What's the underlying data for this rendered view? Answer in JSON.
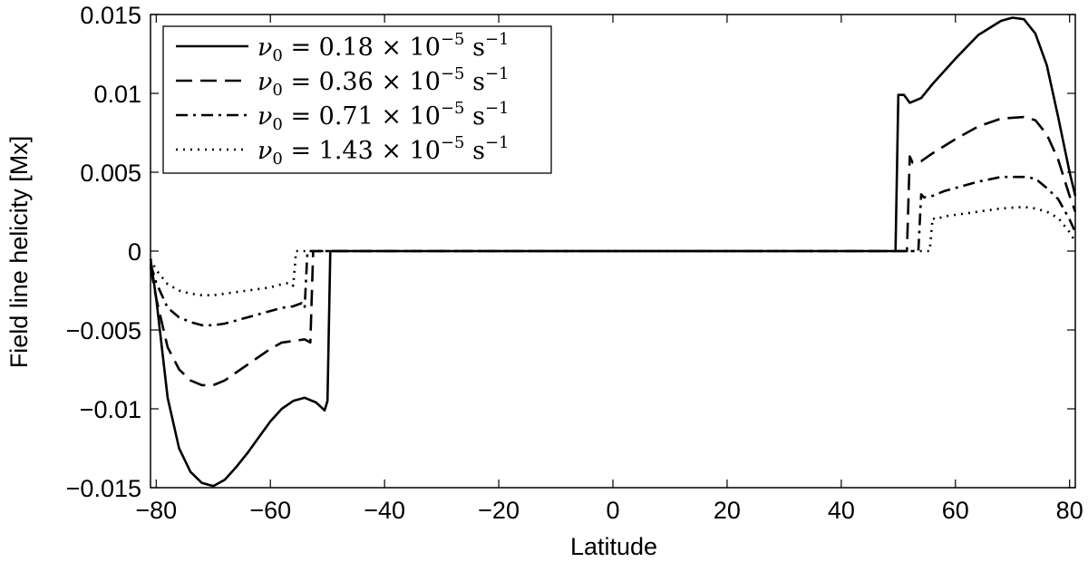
{
  "chart_data": {
    "type": "line",
    "title": "",
    "xlabel": "Latitude",
    "ylabel": "Field line helicity [Mx]",
    "xlim": [
      -81,
      81
    ],
    "ylim": [
      -0.015,
      0.015
    ],
    "x_ticks": [
      -80,
      -60,
      -40,
      -20,
      0,
      20,
      40,
      60,
      80
    ],
    "x_tick_labels": [
      "−80",
      "−60",
      "−40",
      "−20",
      "0",
      "20",
      "40",
      "60",
      "80"
    ],
    "y_ticks": [
      -0.015,
      -0.01,
      -0.005,
      0,
      0.005,
      0.01,
      0.015
    ],
    "y_tick_labels": [
      "−0.015",
      "−0.01",
      "−0.005",
      "0",
      "0.005",
      "0.01",
      "0.015"
    ],
    "grid": false,
    "legend_position": "top-left",
    "series": [
      {
        "name": "ν0 = 0.18 × 10−5 s−1",
        "label_parts": {
          "nu": "0.18",
          "exp": "−5",
          "unit_exp": "−1"
        },
        "style": "solid",
        "x": [
          -81,
          -80,
          -78,
          -76,
          -74,
          -72,
          -70,
          -68,
          -66,
          -64,
          -62,
          -60,
          -58,
          -56,
          -54,
          -52,
          -50.5,
          -50,
          -49.5,
          -49,
          -45,
          -30,
          -10,
          0,
          10,
          30,
          49,
          49.5,
          50,
          51,
          52,
          54,
          56,
          60,
          64,
          68,
          70,
          72,
          74,
          76,
          78,
          80,
          81
        ],
        "y": [
          -0.0005,
          -0.003,
          -0.0093,
          -0.0125,
          -0.014,
          -0.0147,
          -0.0149,
          -0.0145,
          -0.0137,
          -0.0128,
          -0.0118,
          -0.0108,
          -0.01,
          -0.0095,
          -0.0093,
          -0.0096,
          -0.0101,
          -0.0095,
          0,
          0,
          0,
          0,
          0,
          0,
          0,
          0,
          0,
          0,
          0.0099,
          0.0099,
          0.0094,
          0.0097,
          0.0106,
          0.0122,
          0.0137,
          0.0146,
          0.0148,
          0.0147,
          0.0138,
          0.0118,
          0.0085,
          0.005,
          0.0035
        ]
      },
      {
        "name": "ν0 = 0.36 × 10−5 s−1",
        "label_parts": {
          "nu": "0.36",
          "exp": "−5",
          "unit_exp": "−1"
        },
        "style": "dashed",
        "x": [
          -81,
          -80,
          -78,
          -76,
          -74,
          -72,
          -70,
          -68,
          -66,
          -64,
          -62,
          -60,
          -58,
          -56,
          -54,
          -53,
          -52.5,
          -52,
          -45,
          0,
          45,
          51.5,
          52,
          52.5,
          54,
          56,
          60,
          64,
          68,
          72,
          74,
          76,
          78,
          80,
          81
        ],
        "y": [
          -0.001,
          -0.003,
          -0.0061,
          -0.0075,
          -0.0082,
          -0.0085,
          -0.0085,
          -0.0082,
          -0.0077,
          -0.0072,
          -0.0067,
          -0.0062,
          -0.0058,
          -0.0057,
          -0.0056,
          -0.0058,
          0,
          0,
          0,
          0,
          0,
          0,
          0.006,
          0.0056,
          0.0057,
          0.0062,
          0.0071,
          0.0079,
          0.0084,
          0.0085,
          0.0083,
          0.0074,
          0.0058,
          0.0035,
          0.0025
        ]
      },
      {
        "name": "ν0 = 0.71 × 10−5 s−1",
        "label_parts": {
          "nu": "0.71",
          "exp": "−5",
          "unit_exp": "−1"
        },
        "style": "dashdot",
        "x": [
          -81,
          -80,
          -78,
          -76,
          -74,
          -72,
          -70,
          -68,
          -66,
          -64,
          -62,
          -60,
          -58,
          -56,
          -54.5,
          -54,
          -53.5,
          -45,
          0,
          45,
          53.5,
          54,
          54.5,
          56,
          58,
          60,
          64,
          68,
          72,
          74,
          76,
          78,
          80,
          81
        ],
        "y": [
          -0.0008,
          -0.002,
          -0.0036,
          -0.0042,
          -0.0045,
          -0.0047,
          -0.0047,
          -0.0046,
          -0.0044,
          -0.0042,
          -0.004,
          -0.0038,
          -0.0036,
          -0.0035,
          -0.0033,
          -0.0036,
          0,
          0,
          0,
          0,
          0,
          0.0036,
          0.0034,
          0.0035,
          0.0038,
          0.004,
          0.0044,
          0.0047,
          0.0047,
          0.0046,
          0.004,
          0.0033,
          0.002,
          0.0012
        ]
      },
      {
        "name": "ν0 = 1.43 × 10−5 s−1",
        "label_parts": {
          "nu": "1.43",
          "exp": "−5",
          "unit_exp": "−1"
        },
        "style": "dotted",
        "x": [
          -81,
          -80,
          -78,
          -76,
          -74,
          -72,
          -70,
          -68,
          -66,
          -64,
          -62,
          -60,
          -58,
          -56.5,
          -56,
          -55.5,
          -45,
          0,
          45,
          55.5,
          56,
          56.5,
          58,
          60,
          64,
          68,
          72,
          74,
          76,
          78,
          80,
          81
        ],
        "y": [
          -0.0005,
          -0.0012,
          -0.0021,
          -0.0025,
          -0.0027,
          -0.0028,
          -0.0028,
          -0.0027,
          -0.0026,
          -0.0025,
          -0.0024,
          -0.0023,
          -0.0021,
          -0.002,
          -0.0022,
          0,
          0,
          0,
          0,
          0,
          0.0021,
          0.002,
          0.0022,
          0.0023,
          0.0025,
          0.0027,
          0.0028,
          0.0027,
          0.0025,
          0.0021,
          0.0012,
          0.0006
        ]
      }
    ]
  }
}
